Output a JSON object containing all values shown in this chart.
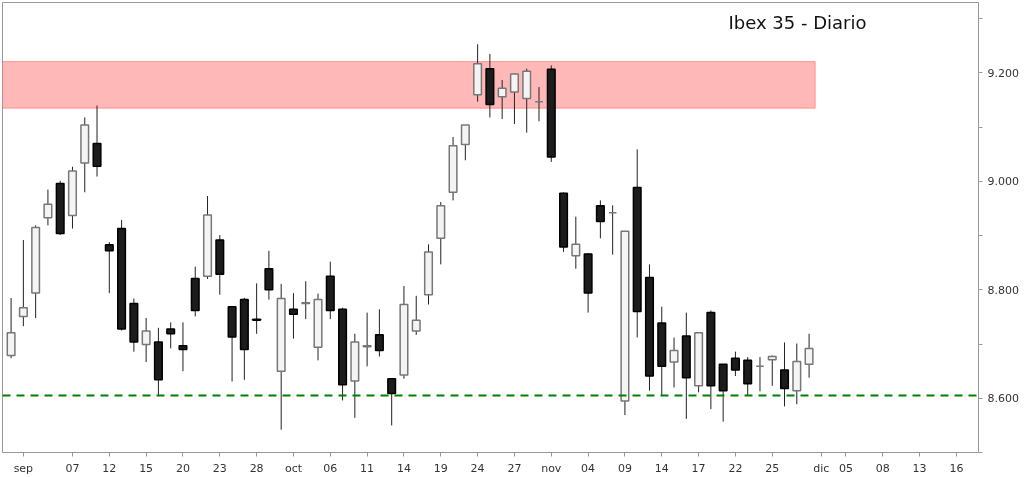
{
  "chart_data": {
    "type": "candlestick",
    "title": "Ibex 35 - Diario",
    "categories": [
      null,
      "sep",
      null,
      null,
      null,
      "07",
      null,
      null,
      "12",
      null,
      null,
      "15",
      null,
      null,
      "20",
      null,
      null,
      "23",
      null,
      null,
      "28",
      null,
      null,
      "oct",
      null,
      null,
      "06",
      null,
      null,
      "11",
      null,
      null,
      "14",
      null,
      null,
      "19",
      null,
      null,
      "24",
      null,
      null,
      "27",
      null,
      null,
      "nov",
      null,
      null,
      "04",
      null,
      null,
      "09",
      null,
      null,
      "14",
      null,
      null,
      "17",
      null,
      null,
      "22",
      null,
      null,
      "25",
      null,
      null,
      null,
      "dic",
      null,
      "05",
      null,
      null,
      "08",
      null,
      null,
      "13",
      null,
      null,
      "16"
    ],
    "ohlc": [
      [
        8679,
        8785,
        8674,
        8721
      ],
      [
        8751,
        8892,
        8733,
        8767
      ],
      [
        8794,
        8919,
        8748,
        8915
      ],
      [
        8933,
        8985,
        8919,
        8958
      ],
      [
        8996,
        9001,
        8901,
        8904
      ],
      [
        8937,
        9027,
        8913,
        9019
      ],
      [
        9034,
        9118,
        8980,
        9104
      ],
      [
        9070,
        9140,
        9009,
        9028
      ],
      [
        8883,
        8888,
        8794,
        8872
      ],
      [
        8913,
        8929,
        8725,
        8728
      ],
      [
        8775,
        8784,
        8686,
        8704
      ],
      [
        8699,
        8748,
        8667,
        8724
      ],
      [
        8704,
        8730,
        8604,
        8634
      ],
      [
        8728,
        8740,
        8692,
        8719
      ],
      [
        8697,
        8740,
        8650,
        8690
      ],
      [
        8821,
        8843,
        8751,
        8762
      ],
      [
        8825,
        8973,
        8820,
        8938
      ],
      [
        8892,
        8901,
        8791,
        8829
      ],
      [
        8769,
        8770,
        8631,
        8713
      ],
      [
        8782,
        8785,
        8634,
        8690
      ],
      [
        8746,
        8812,
        8719,
        8744
      ],
      [
        8839,
        8872,
        8782,
        8800
      ],
      [
        8650,
        8811,
        8542,
        8784
      ],
      [
        8764,
        8794,
        8710,
        8755
      ],
      [
        8775,
        8816,
        8746,
        8776
      ],
      [
        8694,
        8793,
        8670,
        8782
      ],
      [
        8825,
        8852,
        8746,
        8762
      ],
      [
        8764,
        8767,
        8596,
        8625
      ],
      [
        8632,
        8719,
        8564,
        8704
      ],
      [
        8695,
        8758,
        8659,
        8697
      ],
      [
        8717,
        8764,
        8677,
        8688
      ],
      [
        8636,
        8636,
        8550,
        8609
      ],
      [
        8643,
        8807,
        8636,
        8773
      ],
      [
        8724,
        8789,
        8717,
        8744
      ],
      [
        8791,
        8884,
        8773,
        8870
      ],
      [
        8895,
        8962,
        8847,
        8955
      ],
      [
        8980,
        9082,
        8965,
        9066
      ],
      [
        9068,
        9104,
        9039,
        9104
      ],
      [
        9160,
        9253,
        9147,
        9217
      ],
      [
        9208,
        9235,
        9118,
        9142
      ],
      [
        9156,
        9187,
        9115,
        9172
      ],
      [
        9165,
        9199,
        9106,
        9198
      ],
      [
        9153,
        9208,
        9090,
        9203
      ],
      [
        9147,
        9174,
        9111,
        9147
      ],
      [
        9207,
        9214,
        9036,
        9045
      ],
      [
        8978,
        8980,
        8870,
        8879
      ],
      [
        8863,
        8935,
        8839,
        8884
      ],
      [
        8866,
        8868,
        8758,
        8794
      ],
      [
        8955,
        8965,
        8895,
        8926
      ],
      [
        8942,
        8956,
        8865,
        8942
      ],
      [
        8595,
        8908,
        8569,
        8908
      ],
      [
        8989,
        9059,
        8712,
        8760
      ],
      [
        8823,
        8847,
        8614,
        8641
      ],
      [
        8739,
        8769,
        8604,
        8659
      ],
      [
        8667,
        8712,
        8620,
        8688
      ],
      [
        8715,
        8758,
        8562,
        8638
      ],
      [
        8623,
        8721,
        8611,
        8721
      ],
      [
        8758,
        8762,
        8580,
        8623
      ],
      [
        8663,
        8663,
        8557,
        8614
      ],
      [
        8674,
        8686,
        8641,
        8652
      ],
      [
        8670,
        8676,
        8604,
        8627
      ],
      [
        8659,
        8676,
        8613,
        8659
      ],
      [
        8671,
        8679,
        8623,
        8677
      ],
      [
        8652,
        8703,
        8585,
        8618
      ],
      [
        8614,
        8701,
        8589,
        8668
      ],
      [
        8663,
        8719,
        8638,
        8692
      ],
      null,
      null,
      null,
      null,
      null,
      null,
      null,
      null,
      null,
      null,
      null,
      null
    ],
    "ylim": [
      8500,
      9330
    ],
    "yticks": [
      {
        "value": 8500,
        "label": null
      },
      {
        "value": 8600,
        "label": "8.600"
      },
      {
        "value": 8700,
        "label": null
      },
      {
        "value": 8800,
        "label": "8.800"
      },
      {
        "value": 8900,
        "label": null
      },
      {
        "value": 9000,
        "label": "9.000"
      },
      {
        "value": 9100,
        "label": null
      },
      {
        "value": 9200,
        "label": "9.200"
      },
      {
        "value": 9300,
        "label": null
      }
    ],
    "bands": [
      {
        "axis": "y",
        "from": 9135,
        "to": 9221,
        "color": "#ffb8b8"
      }
    ],
    "ref_lines": [
      {
        "axis": "y",
        "value": 8605,
        "color": "#008000",
        "line_style": "dashed"
      }
    ],
    "grid": false
  }
}
